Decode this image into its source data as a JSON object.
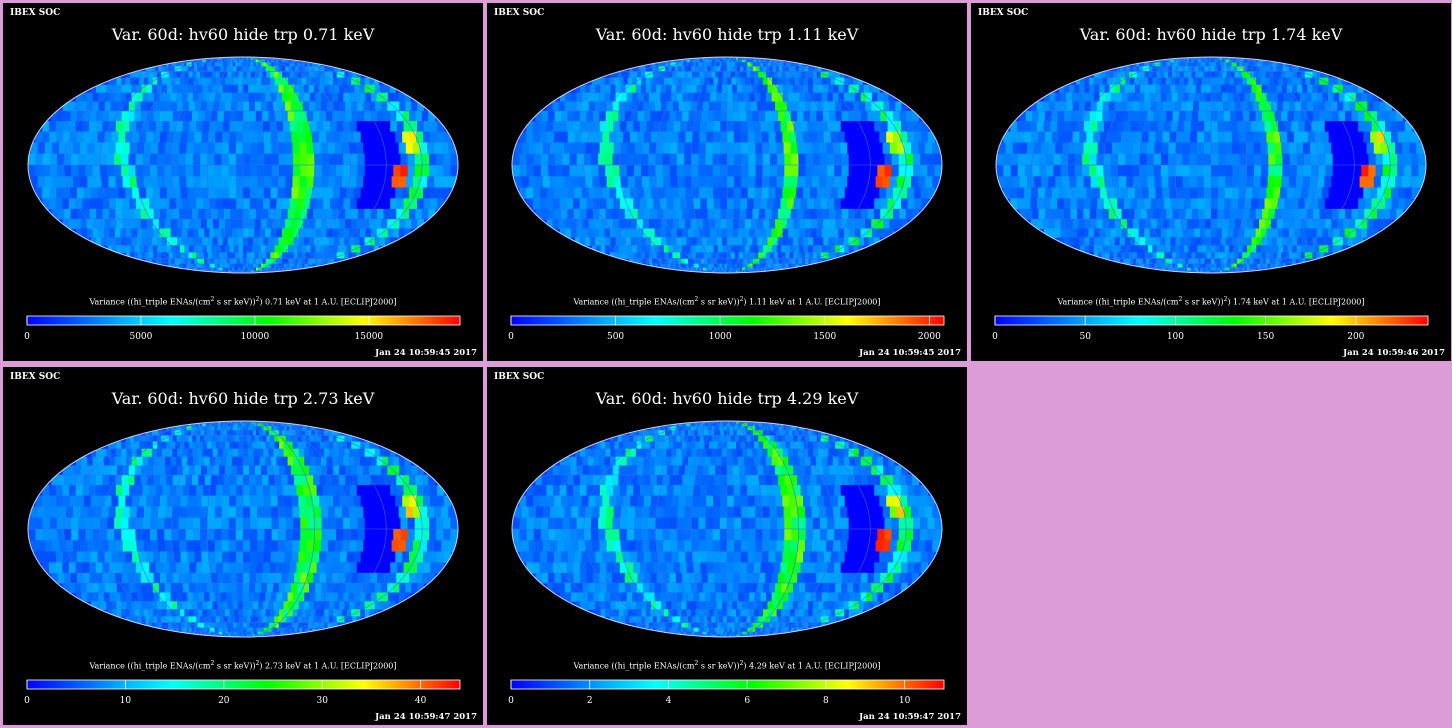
{
  "chart_data": [
    {
      "type": "heatmap",
      "projection": "mollweide",
      "label_tl": "IBEX SOC",
      "title": "Var. 60d: hv60 hide trp 0.71 keV",
      "colorbar_label": [
        "Variance ((hi_triple ENAs/(cm",
        "2",
        " s sr keV))",
        "2",
        ") 0.71 keV at 1 A.U. [ECLIPJ2000]"
      ],
      "colorbar_ticks": [
        "0",
        "5000",
        "10000",
        "15000"
      ],
      "colorbar_range": [
        0,
        19000
      ],
      "timestamp": "Jan 24 10:59:45 2017"
    },
    {
      "type": "heatmap",
      "projection": "mollweide",
      "label_tl": "IBEX SOC",
      "title": "Var. 60d: hv60 hide trp 1.11 keV",
      "colorbar_label": [
        "Variance ((hi_triple ENAs/(cm",
        "2",
        " s sr keV))",
        "2",
        ") 1.11 keV at 1 A.U. [ECLIPJ2000]"
      ],
      "colorbar_ticks": [
        "0",
        "500",
        "1000",
        "1500",
        "2000"
      ],
      "colorbar_range": [
        0,
        2070
      ],
      "timestamp": "Jan 24 10:59:45 2017"
    },
    {
      "type": "heatmap",
      "projection": "mollweide",
      "label_tl": "IBEX SOC",
      "title": "Var. 60d: hv60 hide trp 1.74 keV",
      "colorbar_label": [
        "Variance ((hi_triple ENAs/(cm",
        "2",
        " s sr keV))",
        "2",
        ") 1.74 keV at 1 A.U. [ECLIPJ2000]"
      ],
      "colorbar_ticks": [
        "0",
        "50",
        "100",
        "150",
        "200"
      ],
      "colorbar_range": [
        0,
        240
      ],
      "timestamp": "Jan 24 10:59:46 2017"
    },
    {
      "type": "heatmap",
      "projection": "mollweide",
      "label_tl": "IBEX SOC",
      "title": "Var. 60d: hv60 hide trp 2.73 keV",
      "colorbar_label": [
        "Variance ((hi_triple ENAs/(cm",
        "2",
        " s sr keV))",
        "2",
        ") 2.73 keV at 1 A.U. [ECLIPJ2000]"
      ],
      "colorbar_ticks": [
        "0",
        "10",
        "20",
        "30",
        "40"
      ],
      "colorbar_range": [
        0,
        44
      ],
      "timestamp": "Jan 24 10:59:47 2017"
    },
    {
      "type": "heatmap",
      "projection": "mollweide",
      "label_tl": "IBEX SOC",
      "title": "Var. 60d: hv60 hide trp 4.29 keV",
      "colorbar_label": [
        "Variance ((hi_triple ENAs/(cm",
        "2",
        " s sr keV))",
        "2",
        ") 4.29 keV at 1 A.U. [ECLIPJ2000]"
      ],
      "colorbar_ticks": [
        "0",
        "2",
        "4",
        "6",
        "8",
        "10"
      ],
      "colorbar_range": [
        0,
        11
      ],
      "timestamp": "Jan 24 10:59:47 2017"
    }
  ],
  "colors": {
    "background": "#dc9cd8",
    "panel": "#000000",
    "colormap": [
      "#0000ff",
      "#0055ff",
      "#00b0ff",
      "#00ffff",
      "#00ff80",
      "#00ff00",
      "#80ff00",
      "#ffff00",
      "#ff8000",
      "#ff0000"
    ]
  }
}
